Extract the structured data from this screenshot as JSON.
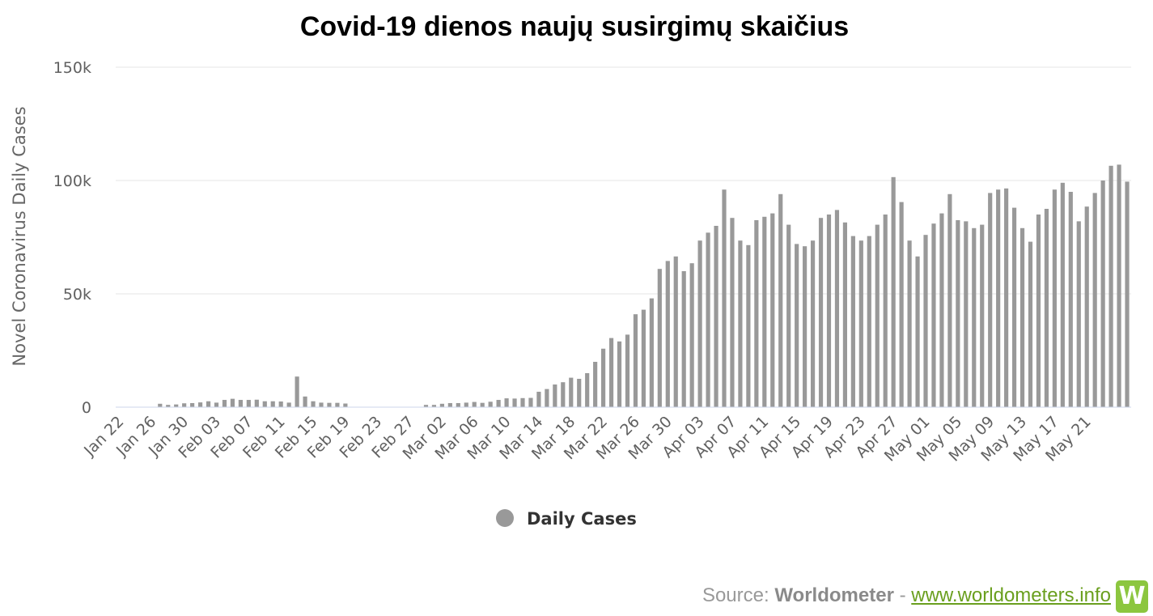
{
  "chart_data": {
    "type": "bar",
    "title": "Covid-19 dienos naujų susirgimų skaičius",
    "ylabel": "Novel Coronavirus Daily Cases",
    "ylim": [
      0,
      150000
    ],
    "yticks": [
      "0",
      "50k",
      "100k",
      "150k"
    ],
    "grid": true,
    "legend": "bottom-center",
    "tick_labels": [
      "Jan 22",
      "Jan 26",
      "Jan 30",
      "Feb 03",
      "Feb 07",
      "Feb 11",
      "Feb 15",
      "Feb 19",
      "Feb 23",
      "Feb 27",
      "Mar 02",
      "Mar 06",
      "Mar 10",
      "Mar 14",
      "Mar 18",
      "Mar 22",
      "Mar 26",
      "Mar 30",
      "Apr 03",
      "Apr 07",
      "Apr 11",
      "Apr 15",
      "Apr 19",
      "Apr 23",
      "Apr 27",
      "May 01",
      "May 05",
      "May 09",
      "May 13",
      "May 17",
      "May 21"
    ],
    "series": [
      {
        "name": "Daily Cases",
        "color": "#999999",
        "values": [
          0,
          0,
          0,
          0,
          0,
          1500,
          1000,
          1200,
          1700,
          1800,
          2100,
          2600,
          2000,
          3200,
          3700,
          3200,
          3200,
          3300,
          2600,
          2600,
          2500,
          2000,
          13500,
          4700,
          2600,
          2000,
          1900,
          1900,
          1600,
          0,
          0,
          0,
          0,
          0,
          0,
          0,
          0,
          0,
          1000,
          1000,
          1500,
          1800,
          1800,
          2000,
          2300,
          1900,
          2400,
          3200,
          3900,
          3800,
          4000,
          4100,
          6800,
          8000,
          10000,
          11000,
          13000,
          12500,
          15000,
          20000,
          25800,
          30500,
          29000,
          32000,
          41000,
          43000,
          48000,
          61000,
          64500,
          66500,
          60000,
          63500,
          73500,
          77000,
          80000,
          96000,
          83500,
          73500,
          71500,
          82500,
          84000,
          85500,
          94000,
          80500,
          72000,
          71000,
          73500,
          83500,
          85000,
          87000,
          81500,
          75500,
          73500,
          75500,
          80500,
          85000,
          101500,
          90500,
          73500,
          66500,
          76000,
          81000,
          85500,
          94000,
          82500,
          82000,
          79000,
          80500,
          94500,
          96000,
          96500,
          88000,
          79000,
          73000,
          85000,
          87500,
          96000,
          99000,
          95000,
          82000,
          88500,
          94500,
          100000,
          106500,
          107000,
          99500
        ]
      }
    ]
  },
  "legend": {
    "label": "Daily Cases"
  },
  "source": {
    "prefix": "Source:",
    "brand": "Worldometer",
    "sep": "-",
    "url": "www.worldometers.info",
    "logo": "W"
  }
}
